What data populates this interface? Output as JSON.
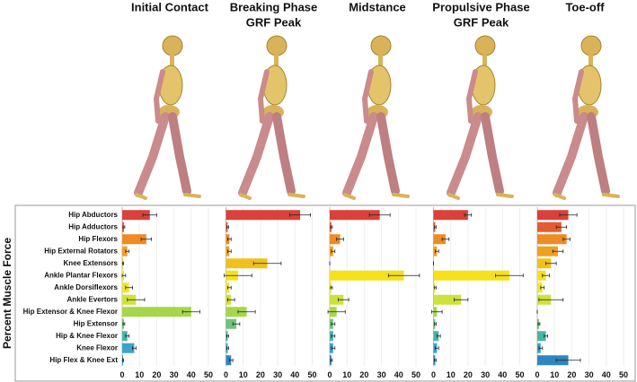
{
  "chart_data": {
    "type": "bar",
    "orientation": "horizontal",
    "y_label": "Percent Muscle Force",
    "categories": [
      "Hip Abductors",
      "Hip Adductors",
      "Hip Flexors",
      "Hip External Rotators",
      "Knee Extensors",
      "Ankle Plantar Flexors",
      "Ankle Dorsiflexors",
      "Ankle Evertors",
      "Hip Extensor & Knee Flexor",
      "Hip Extensor",
      "Hip & Knee Flexor",
      "Knee Flexor",
      "Hip Flex & Knee Ext"
    ],
    "colors": [
      "#d9413a",
      "#e65a32",
      "#f08a22",
      "#f0a020",
      "#f2c01a",
      "#f5e01a",
      "#efe62e",
      "#cde23a",
      "#a6d64a",
      "#6ec67a",
      "#45b6a8",
      "#3aa4c6",
      "#2e86c1"
    ],
    "xlim": [
      0,
      50
    ],
    "xticks": [
      0,
      10,
      20,
      30,
      40,
      50
    ],
    "panels": [
      {
        "title": [
          "Initial Contact"
        ],
        "values": [
          16,
          1,
          14,
          3,
          0.5,
          1,
          4,
          8,
          40,
          1,
          3,
          7,
          0.5
        ],
        "errors": [
          4,
          0.5,
          3,
          1,
          0.3,
          1,
          2,
          5,
          5,
          0.5,
          1,
          1,
          0.3
        ]
      },
      {
        "title": [
          "Breaking Phase",
          "GRF Peak"
        ],
        "values": [
          43,
          1,
          2,
          2,
          24,
          7,
          2,
          3,
          12,
          6,
          1,
          1,
          3
        ],
        "errors": [
          6,
          0.5,
          1,
          1,
          8,
          8,
          1,
          2,
          5,
          2,
          0.5,
          0.5,
          1
        ]
      },
      {
        "title": [
          "Midstance"
        ],
        "values": [
          29,
          1,
          6,
          2,
          0,
          43,
          1,
          8,
          4,
          2,
          2,
          2,
          1
        ],
        "errors": [
          6,
          0.5,
          2,
          1,
          0,
          9,
          0.5,
          3,
          5,
          1,
          1,
          1,
          0.5
        ]
      },
      {
        "title": [
          "Propulsive Phase",
          "GRF Peak"
        ],
        "values": [
          20,
          1,
          7,
          2,
          0,
          44,
          1,
          16,
          2,
          1,
          3,
          2,
          1
        ],
        "errors": [
          2,
          0.5,
          2,
          1,
          0,
          8,
          0.5,
          4,
          3,
          0.5,
          1,
          1,
          0.5
        ]
      },
      {
        "title": [
          "Toe-off"
        ],
        "values": [
          18,
          14,
          17,
          12,
          8,
          5,
          3,
          8,
          0,
          1,
          5,
          2,
          18
        ],
        "errors": [
          5,
          3,
          2,
          3,
          3,
          2,
          1,
          7,
          0,
          0.5,
          1,
          1,
          7
        ]
      }
    ]
  }
}
